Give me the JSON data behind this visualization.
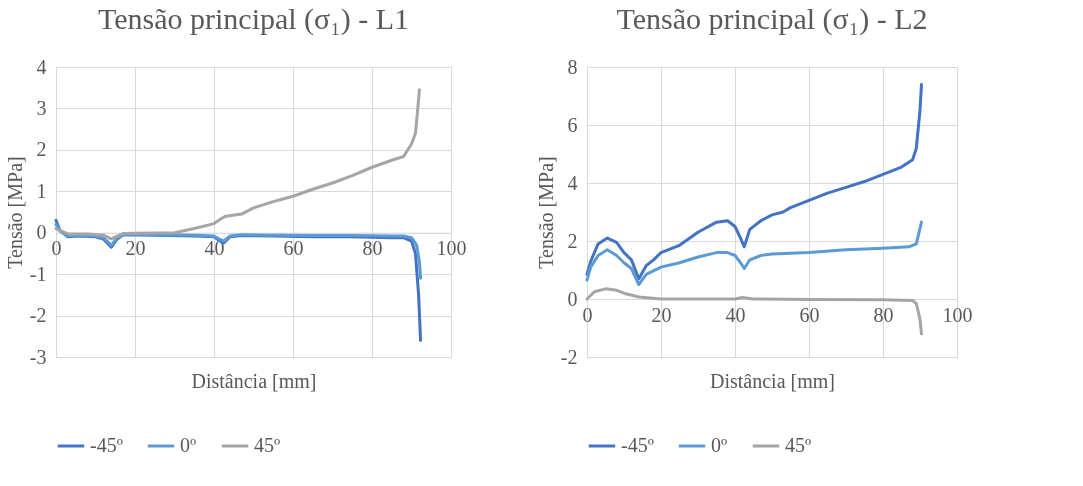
{
  "chart_data": [
    {
      "type": "line",
      "title": "Tensão principal (σ₁) - L1",
      "xlabel": "Distância [mm]",
      "ylabel": "Tensão [MPa]",
      "xlim": [
        0,
        100
      ],
      "xticks": [
        0,
        20,
        40,
        60,
        80,
        100
      ],
      "ylim": [
        -3,
        4
      ],
      "yticks": [
        -3,
        -2,
        -1,
        0,
        1,
        2,
        3,
        4
      ],
      "grid": true,
      "legend": "bottom",
      "marker": "none",
      "line_style": "solid",
      "series": [
        {
          "name": "-45º",
          "color": "#4472c4",
          "x": [
            0,
            1,
            3,
            6,
            10,
            12,
            14,
            15.5,
            17,
            25,
            35,
            40,
            41.5,
            42.5,
            44,
            47,
            55,
            65,
            75,
            85,
            88,
            90,
            91,
            91.8,
            92.3
          ],
          "values": [
            0.3,
            0.05,
            -0.1,
            -0.08,
            -0.1,
            -0.15,
            -0.35,
            -0.15,
            -0.05,
            -0.06,
            -0.08,
            -0.1,
            -0.2,
            -0.25,
            -0.1,
            -0.07,
            -0.08,
            -0.1,
            -0.1,
            -0.12,
            -0.12,
            -0.2,
            -0.5,
            -1.5,
            -2.6
          ]
        },
        {
          "name": "0º",
          "color": "#5b9bd5",
          "x": [
            0,
            1,
            3,
            6,
            10,
            12,
            14,
            15.5,
            17,
            25,
            35,
            40,
            41.5,
            42.5,
            44,
            47,
            55,
            65,
            75,
            85,
            88,
            90,
            91.3,
            92,
            92.3
          ],
          "values": [
            0.2,
            0.05,
            -0.08,
            -0.06,
            -0.08,
            -0.12,
            -0.3,
            -0.12,
            -0.04,
            -0.05,
            -0.06,
            -0.08,
            -0.16,
            -0.2,
            -0.08,
            -0.05,
            -0.06,
            -0.07,
            -0.07,
            -0.08,
            -0.08,
            -0.12,
            -0.3,
            -0.7,
            -1.1
          ]
        },
        {
          "name": "45º",
          "color": "#a5a5a5",
          "x": [
            0,
            3,
            8,
            12,
            14,
            17,
            20,
            30,
            35,
            40,
            42,
            43,
            47,
            50,
            55,
            60,
            65,
            70,
            75,
            80,
            85,
            88,
            90,
            91,
            91.5,
            92
          ],
          "values": [
            0.1,
            -0.03,
            -0.03,
            -0.06,
            -0.15,
            -0.02,
            -0.01,
            0.0,
            0.1,
            0.22,
            0.35,
            0.4,
            0.45,
            0.6,
            0.75,
            0.88,
            1.05,
            1.2,
            1.38,
            1.58,
            1.75,
            1.84,
            2.14,
            2.4,
            2.9,
            3.45
          ]
        }
      ]
    },
    {
      "type": "line",
      "title": "Tensão principal (σ₁) - L2",
      "xlabel": "Distância [mm]",
      "ylabel": "Tensão [MPa]",
      "xlim": [
        0,
        100
      ],
      "xticks": [
        0,
        20,
        40,
        60,
        80,
        100
      ],
      "ylim": [
        -2,
        8
      ],
      "yticks": [
        -2,
        0,
        2,
        4,
        6,
        8
      ],
      "grid": true,
      "legend": "bottom",
      "marker": "none",
      "line_style": "solid",
      "series": [
        {
          "name": "-45º",
          "color": "#4472c4",
          "x": [
            0,
            1,
            3,
            5.5,
            8,
            10,
            12,
            14,
            16,
            18,
            20,
            25,
            30,
            35,
            38,
            40,
            41.5,
            42.5,
            44,
            47,
            50,
            53,
            55,
            60,
            65,
            70,
            75,
            80,
            85,
            88,
            89,
            90,
            90.4
          ],
          "values": [
            0.85,
            1.3,
            1.9,
            2.1,
            1.95,
            1.6,
            1.35,
            0.7,
            1.15,
            1.35,
            1.6,
            1.85,
            2.3,
            2.65,
            2.7,
            2.5,
            2.1,
            1.8,
            2.4,
            2.7,
            2.9,
            3.0,
            3.15,
            3.4,
            3.65,
            3.85,
            4.05,
            4.3,
            4.55,
            4.8,
            5.2,
            6.5,
            7.4
          ]
        },
        {
          "name": "0º",
          "color": "#5b9bd5",
          "x": [
            0,
            1,
            3,
            5.5,
            8,
            10,
            12,
            14,
            16,
            20,
            25,
            30,
            35,
            38,
            40,
            41.5,
            42.5,
            44,
            47,
            50,
            60,
            70,
            80,
            87,
            89,
            90.4
          ],
          "values": [
            0.65,
            1.1,
            1.5,
            1.7,
            1.5,
            1.25,
            1.05,
            0.5,
            0.85,
            1.1,
            1.25,
            1.45,
            1.6,
            1.6,
            1.5,
            1.25,
            1.05,
            1.35,
            1.5,
            1.55,
            1.6,
            1.7,
            1.75,
            1.8,
            1.9,
            2.65
          ]
        },
        {
          "name": "45º",
          "color": "#a5a5a5",
          "x": [
            0,
            2,
            5,
            8,
            10,
            14,
            20,
            40,
            42,
            45,
            60,
            80,
            88,
            89,
            90,
            90.4
          ],
          "values": [
            0.0,
            0.25,
            0.35,
            0.3,
            0.2,
            0.07,
            0.0,
            0.0,
            0.05,
            0.0,
            -0.02,
            -0.03,
            -0.05,
            -0.15,
            -0.7,
            -1.2
          ]
        }
      ]
    }
  ]
}
